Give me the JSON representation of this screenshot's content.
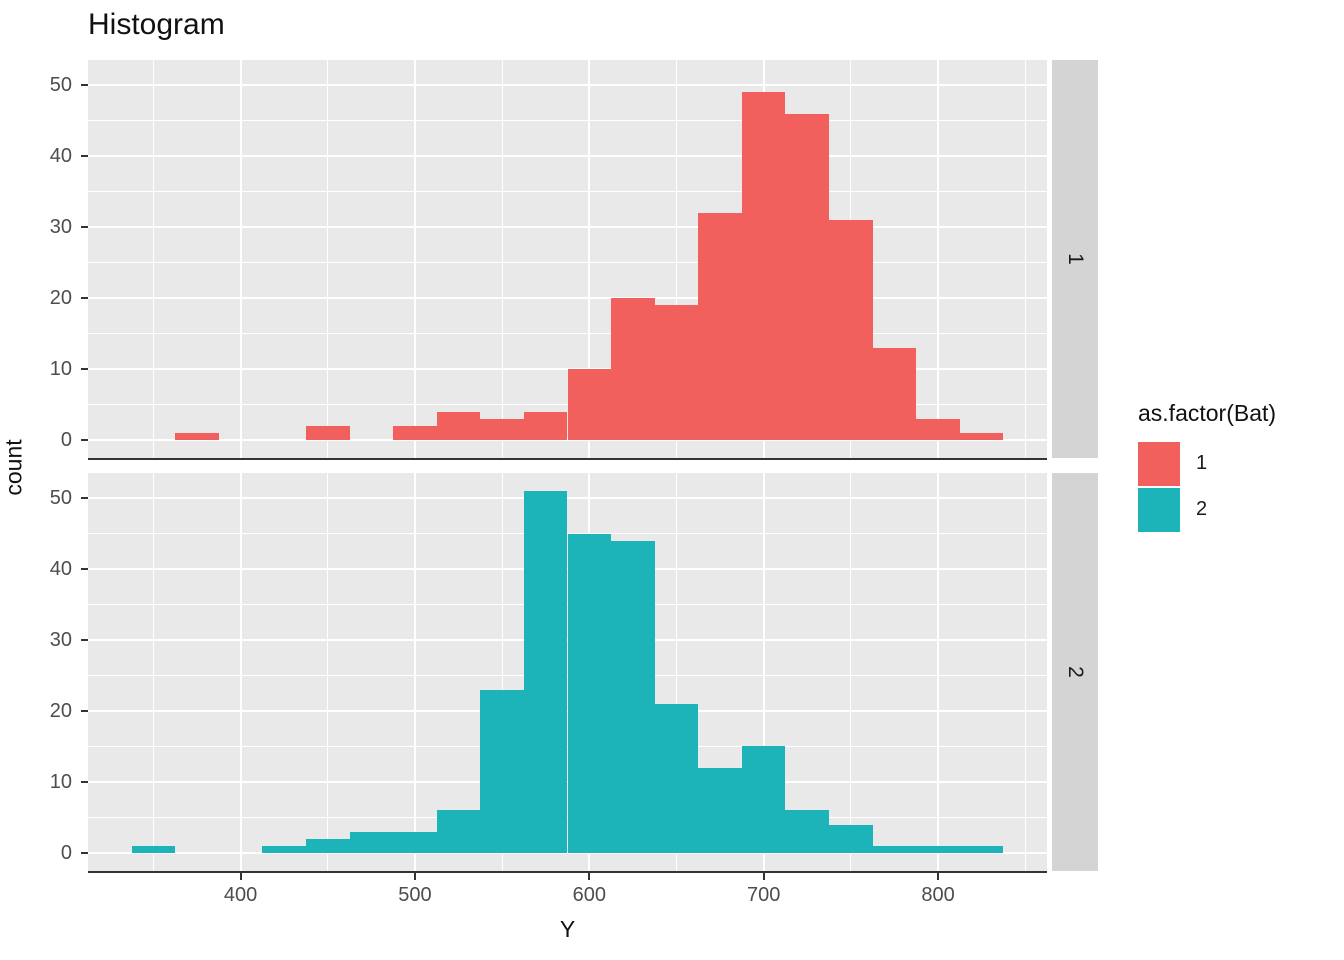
{
  "title": "Histogram",
  "axes": {
    "x_label": "Y",
    "y_label": "count"
  },
  "legend": {
    "title": "as.factor(Bat)",
    "entries": [
      {
        "label": "1",
        "color": "#F2605D"
      },
      {
        "label": "2",
        "color": "#1CB3B9"
      }
    ]
  },
  "facets": [
    {
      "strip_label": "1"
    },
    {
      "strip_label": "2"
    }
  ],
  "chart_data": {
    "type": "bar",
    "subtype": "faceted-histogram",
    "title": "Histogram",
    "xlabel": "Y",
    "ylabel": "count",
    "legend_title": "as.factor(Bat)",
    "bin_width": 25,
    "bin_centers": [
      350,
      375,
      400,
      425,
      450,
      475,
      500,
      525,
      550,
      575,
      600,
      625,
      650,
      675,
      700,
      725,
      750,
      775,
      800,
      825
    ],
    "series": [
      {
        "name": "1",
        "facet": "1",
        "color": "#F2605D",
        "counts": [
          0,
          1,
          0,
          0,
          2,
          0,
          2,
          4,
          3,
          4,
          10,
          20,
          19,
          32,
          49,
          46,
          31,
          13,
          3,
          1
        ]
      },
      {
        "name": "2",
        "facet": "2",
        "color": "#1CB3B9",
        "counts": [
          1,
          0,
          0,
          1,
          2,
          3,
          3,
          6,
          23,
          51,
          45,
          44,
          21,
          12,
          15,
          6,
          4,
          1,
          1,
          1
        ]
      }
    ],
    "x_ticks": [
      400,
      500,
      600,
      700,
      800
    ],
    "x_minor_ticks": [
      350,
      450,
      550,
      650,
      750,
      850
    ],
    "y_ticks": [
      0,
      10,
      20,
      30,
      40,
      50
    ],
    "y_minor_ticks": [
      5,
      15,
      25,
      35,
      45
    ],
    "x_domain": [
      312.5,
      862.5
    ],
    "y_domain": [
      -2.55,
      53.55
    ],
    "grid": true,
    "legend_position": "right",
    "panel_background": "#E9E9E9",
    "grid_color": "#FFFFFF",
    "strip_background": "#D4D4D4",
    "axis_line_color": "#333333"
  }
}
